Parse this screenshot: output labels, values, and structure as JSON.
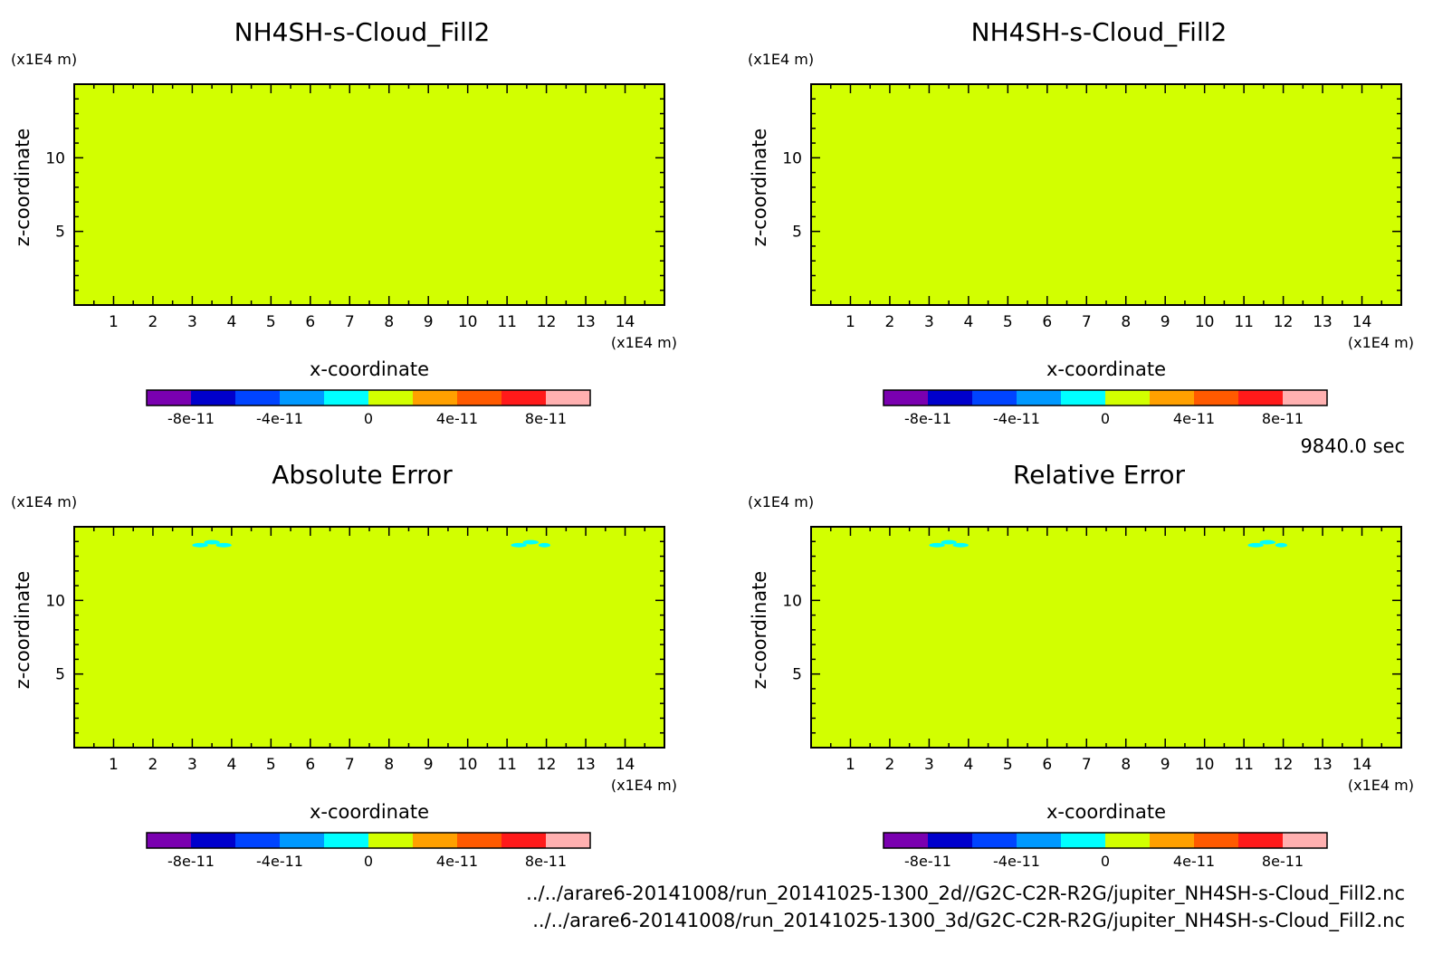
{
  "chart_data": [
    {
      "type": "heatmap",
      "title": "NH4SH-s-Cloud_Fill2",
      "xlabel": "x-coordinate",
      "ylabel": "z-coordinate",
      "x_unit": "(x1E4 m)",
      "y_unit": "(x1E4 m)",
      "xlim": [
        0,
        15
      ],
      "ylim": [
        0,
        15
      ],
      "xticks": [
        1,
        2,
        3,
        4,
        5,
        6,
        7,
        8,
        9,
        10,
        11,
        12,
        13,
        14
      ],
      "yticks": [
        5,
        10
      ],
      "field_value": 0,
      "patches": [],
      "colorbar": {
        "colors": [
          "#7a00b0",
          "#0000cc",
          "#0044ff",
          "#0099ff",
          "#00ffff",
          "#d2ff00",
          "#ffa000",
          "#ff5a00",
          "#ff1a1a",
          "#ffb0b0"
        ],
        "range": [
          -1e-10,
          1e-10
        ],
        "tick_values": [
          -8e-11,
          -4e-11,
          0,
          4e-11,
          8e-11
        ],
        "tick_labels": [
          "-8e-11",
          "-4e-11",
          "0",
          "4e-11",
          "8e-11"
        ]
      }
    },
    {
      "type": "heatmap",
      "title": "NH4SH-s-Cloud_Fill2",
      "xlabel": "x-coordinate",
      "ylabel": "z-coordinate",
      "x_unit": "(x1E4 m)",
      "y_unit": "(x1E4 m)",
      "xlim": [
        0,
        15
      ],
      "ylim": [
        0,
        15
      ],
      "xticks": [
        1,
        2,
        3,
        4,
        5,
        6,
        7,
        8,
        9,
        10,
        11,
        12,
        13,
        14
      ],
      "yticks": [
        5,
        10
      ],
      "field_value": 0,
      "patches": [],
      "colorbar": {
        "colors": [
          "#7a00b0",
          "#0000cc",
          "#0044ff",
          "#0099ff",
          "#00ffff",
          "#d2ff00",
          "#ffa000",
          "#ff5a00",
          "#ff1a1a",
          "#ffb0b0"
        ],
        "range": [
          -1e-10,
          1e-10
        ],
        "tick_values": [
          -8e-11,
          -4e-11,
          0,
          4e-11,
          8e-11
        ],
        "tick_labels": [
          "-8e-11",
          "-4e-11",
          "0",
          "4e-11",
          "8e-11"
        ]
      }
    },
    {
      "type": "heatmap",
      "title": "Absolute Error",
      "xlabel": "x-coordinate",
      "ylabel": "z-coordinate",
      "x_unit": "(x1E4 m)",
      "y_unit": "(x1E4 m)",
      "xlim": [
        0,
        15
      ],
      "ylim": [
        0,
        15
      ],
      "xticks": [
        1,
        2,
        3,
        4,
        5,
        6,
        7,
        8,
        9,
        10,
        11,
        12,
        13,
        14
      ],
      "yticks": [
        5,
        10
      ],
      "field_value": 0,
      "patches": [
        {
          "x": [
            3.0,
            3.4
          ],
          "z": [
            13.6,
            13.9
          ],
          "value": -1e-11
        },
        {
          "x": [
            3.3,
            3.7
          ],
          "z": [
            13.8,
            14.1
          ],
          "value": -1e-11
        },
        {
          "x": [
            3.6,
            4.0
          ],
          "z": [
            13.6,
            13.9
          ],
          "value": -1e-11
        },
        {
          "x": [
            11.1,
            11.5
          ],
          "z": [
            13.6,
            13.9
          ],
          "value": -1e-11
        },
        {
          "x": [
            11.4,
            11.8
          ],
          "z": [
            13.8,
            14.1
          ],
          "value": -1e-11
        },
        {
          "x": [
            11.8,
            12.1
          ],
          "z": [
            13.6,
            13.9
          ],
          "value": -1e-11
        }
      ],
      "colorbar": {
        "colors": [
          "#7a00b0",
          "#0000cc",
          "#0044ff",
          "#0099ff",
          "#00ffff",
          "#d2ff00",
          "#ffa000",
          "#ff5a00",
          "#ff1a1a",
          "#ffb0b0"
        ],
        "range": [
          -1e-10,
          1e-10
        ],
        "tick_values": [
          -8e-11,
          -4e-11,
          0,
          4e-11,
          8e-11
        ],
        "tick_labels": [
          "-8e-11",
          "-4e-11",
          "0",
          "4e-11",
          "8e-11"
        ]
      }
    },
    {
      "type": "heatmap",
      "title": "Relative Error",
      "xlabel": "x-coordinate",
      "ylabel": "z-coordinate",
      "x_unit": "(x1E4 m)",
      "y_unit": "(x1E4 m)",
      "xlim": [
        0,
        15
      ],
      "ylim": [
        0,
        15
      ],
      "xticks": [
        1,
        2,
        3,
        4,
        5,
        6,
        7,
        8,
        9,
        10,
        11,
        12,
        13,
        14
      ],
      "yticks": [
        5,
        10
      ],
      "field_value": 0,
      "patches": [
        {
          "x": [
            3.0,
            3.4
          ],
          "z": [
            13.6,
            13.9
          ],
          "value": -1e-11
        },
        {
          "x": [
            3.3,
            3.7
          ],
          "z": [
            13.8,
            14.1
          ],
          "value": -1e-11
        },
        {
          "x": [
            3.6,
            4.0
          ],
          "z": [
            13.6,
            13.9
          ],
          "value": -1e-11
        },
        {
          "x": [
            11.1,
            11.5
          ],
          "z": [
            13.6,
            13.9
          ],
          "value": -1e-11
        },
        {
          "x": [
            11.4,
            11.8
          ],
          "z": [
            13.8,
            14.1
          ],
          "value": -1e-11
        },
        {
          "x": [
            11.8,
            12.1
          ],
          "z": [
            13.6,
            13.9
          ],
          "value": -1e-11
        }
      ],
      "colorbar": {
        "colors": [
          "#7a00b0",
          "#0000cc",
          "#0044ff",
          "#0099ff",
          "#00ffff",
          "#d2ff00",
          "#ffa000",
          "#ff5a00",
          "#ff1a1a",
          "#ffb0b0"
        ],
        "range": [
          -1e-10,
          1e-10
        ],
        "tick_values": [
          -8e-11,
          -4e-11,
          0,
          4e-11,
          8e-11
        ],
        "tick_labels": [
          "-8e-11",
          "-4e-11",
          "0",
          "4e-11",
          "8e-11"
        ]
      }
    }
  ],
  "time_label": "9840.0 sec",
  "files": [
    "../../arare6-20141008/run_20141025-1300_2d//G2C-C2R-R2G/jupiter_NH4SH-s-Cloud_Fill2.nc",
    "../../arare6-20141008/run_20141025-1300_3d/G2C-C2R-R2G/jupiter_NH4SH-s-Cloud_Fill2.nc"
  ]
}
